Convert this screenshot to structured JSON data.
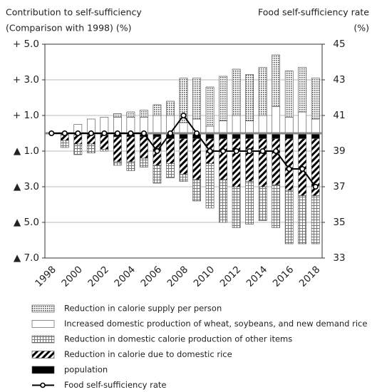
{
  "chart_data": {
    "type": "bar",
    "y_title": [
      "Contribution to self-sufficiency",
      "(Comparison with 1998) (%)"
    ],
    "y2_title": [
      "Food self-sufficiency rate",
      "(%)"
    ],
    "categories": [
      "1998",
      null,
      "2000",
      null,
      "2002",
      null,
      "2004",
      null,
      "2006",
      null,
      "2008",
      null,
      "2010",
      null,
      "2012",
      null,
      "2014",
      null,
      "2016",
      null,
      "2018"
    ],
    "ylim": [
      -7,
      5
    ],
    "yticks": [
      {
        "value": 5,
        "label": "+ 5.0"
      },
      {
        "value": 3,
        "label": "+ 3.0"
      },
      {
        "value": 1,
        "label": "+ 1.0"
      },
      {
        "value": -1,
        "label": "▲ 1.0"
      },
      {
        "value": -3,
        "label": "▲ 3.0"
      },
      {
        "value": -5,
        "label": "▲ 5.0"
      },
      {
        "value": -7,
        "label": "▲ 7.0"
      }
    ],
    "y2lim": [
      33,
      45
    ],
    "y2ticks": [
      45,
      43,
      41,
      39,
      37,
      35,
      33
    ],
    "grid": true,
    "series": [
      {
        "name": "Reduction in calorie supply per person",
        "color": "#bbbbbb",
        "pattern": "dots",
        "values": [
          0,
          0,
          0,
          0,
          0,
          0.2,
          0.3,
          0.4,
          0.6,
          0.8,
          2.5,
          2.3,
          2.2,
          2.5,
          2.6,
          2.6,
          2.7,
          2.9,
          2.6,
          2.5,
          2.3
        ]
      },
      {
        "name": "Increased domestic production of wheat, soybeans, and new demand rice",
        "color": "#ffffff",
        "pattern": "none",
        "values": [
          0,
          0,
          0.5,
          0.8,
          0.9,
          0.9,
          0.9,
          0.9,
          1.0,
          1.0,
          0.6,
          0.8,
          0.4,
          0.7,
          1.0,
          0.7,
          1.0,
          1.5,
          0.9,
          1.2,
          0.8
        ]
      },
      {
        "name": "Reduction in domestic calorie production of other items",
        "color": "#999999",
        "pattern": "grid",
        "values": [
          0,
          -0.4,
          -0.6,
          -0.5,
          -0.1,
          -0.2,
          -0.5,
          -0.5,
          -1.0,
          -0.8,
          -0.4,
          -1.2,
          -2.5,
          -2.4,
          -2.3,
          -2.4,
          -1.9,
          -2.4,
          -3.0,
          -2.7,
          -2.7
        ]
      },
      {
        "name": "Reduction in calorie due to domestic rice",
        "color": "#000000",
        "pattern": "hatch",
        "values": [
          0,
          -0.3,
          -0.5,
          -0.5,
          -0.8,
          -1.4,
          -1.4,
          -1.2,
          -1.6,
          -1.4,
          -2.0,
          -2.3,
          -1.4,
          -2.3,
          -2.7,
          -2.4,
          -2.7,
          -2.6,
          -2.9,
          -3.2,
          -3.2
        ]
      },
      {
        "name": "population",
        "color": "#000000",
        "pattern": "none",
        "values": [
          0,
          -0.1,
          -0.1,
          -0.1,
          -0.1,
          -0.2,
          -0.2,
          -0.2,
          -0.2,
          -0.3,
          -0.3,
          -0.3,
          -0.3,
          -0.3,
          -0.3,
          -0.3,
          -0.3,
          -0.3,
          -0.3,
          -0.3,
          -0.3
        ]
      },
      {
        "name": "Food self-sufficiency rate",
        "type": "line",
        "axis": "y2",
        "color": "#000000",
        "values": [
          40,
          40,
          40,
          40,
          40,
          40,
          40,
          40,
          39,
          40,
          41,
          40,
          39,
          39,
          39,
          39,
          39,
          39,
          38,
          38,
          37
        ]
      }
    ]
  }
}
